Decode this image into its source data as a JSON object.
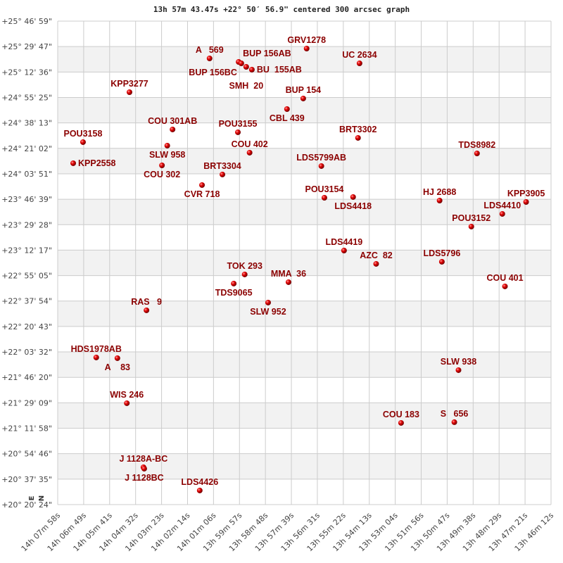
{
  "chart_data": {
    "type": "scatter",
    "title": "13h 57m 43.47s +22° 50′ 56.9\" centered 300 arcsec graph",
    "x_axis": {
      "range": [
        "14h07m58s",
        "13h46m12s"
      ],
      "direction": "RA decreasing to the right",
      "tick_labels": [
        "14h 07m 58s",
        "14h 06m 49s",
        "14h 05m 41s",
        "14h 04m 32s",
        "14h 03m 23s",
        "14h 02m 14s",
        "14h 01m 06s",
        "13h 59m 57s",
        "13h 58m 48s",
        "13h 57m 39s",
        "13h 56m 31s",
        "13h 55m 22s",
        "13h 54m 13s",
        "13h 53m 04s",
        "13h 51m 56s",
        "13h 50m 47s",
        "13h 49m 38s",
        "13h 48m 29s",
        "13h 47m 21s",
        "13h 46m 12s"
      ]
    },
    "y_axis": {
      "range": [
        "+20°20'24\"",
        "+25°46'59\""
      ],
      "tick_labels": [
        "+25° 46' 59\"",
        "+25° 29' 47\"",
        "+25° 12' 36\"",
        "+24° 55' 25\"",
        "+24° 38' 13\"",
        "+24° 21' 02\"",
        "+24° 03' 51\"",
        "+23° 46' 39\"",
        "+23° 29' 28\"",
        "+23° 12' 17\"",
        "+22° 55' 05\"",
        "+22° 37' 54\"",
        "+22° 20' 43\"",
        "+22° 03' 32\"",
        "+21° 46' 20\"",
        "+21° 29' 09\"",
        "+21° 11' 58\"",
        "+20° 54' 46\"",
        "+20° 37' 35\"",
        "+20° 20' 24\""
      ]
    },
    "grid": true,
    "alternating_bands": true,
    "direction_labels": {
      "north": "N",
      "east": "E"
    },
    "colors": {
      "point": "#dd0000",
      "label": "#8b0000",
      "grid": "#cccccc",
      "band": "#f2f2f2"
    },
    "points": [
      {
        "name": "A   569",
        "ra": "14h01m16s",
        "dec": "+25°21'47\""
      },
      {
        "name": "BUP 156AB",
        "ra": "13h59m59s",
        "dec": "+25°19'25\""
      },
      {
        "name": "BUP 156BC",
        "ra": "13h59m52s",
        "dec": "+25°18'28\""
      },
      {
        "name": "SMH  20",
        "ra": "13h59m39s",
        "dec": "+25°16'05\""
      },
      {
        "name": "BU  155AB",
        "ra": "13h59m24s",
        "dec": "+25°14'11\""
      },
      {
        "name": "GRV1278",
        "ra": "13h56m59s",
        "dec": "+25°28'27\""
      },
      {
        "name": "UC 2634",
        "ra": "13h54m39s",
        "dec": "+25°18'28\""
      },
      {
        "name": "KPP3277",
        "ra": "14h04m48s",
        "dec": "+24°58'58\""
      },
      {
        "name": "BUP 154",
        "ra": "13h57m08s",
        "dec": "+24°54'42\""
      },
      {
        "name": "CBL 439",
        "ra": "13h57m51s",
        "dec": "+24°47'34\""
      },
      {
        "name": "COU 301AB",
        "ra": "14h02m54s",
        "dec": "+24°33'47\""
      },
      {
        "name": "POU3155",
        "ra": "14h00m01s",
        "dec": "+24°31'53\""
      },
      {
        "name": "SLW 958",
        "ra": "14h03m08s",
        "dec": "+24°22'51\""
      },
      {
        "name": "BRT3302",
        "ra": "13h54m43s",
        "dec": "+24°28'05\""
      },
      {
        "name": "POU3158",
        "ra": "14h06m51s",
        "dec": "+24°25'14\""
      },
      {
        "name": "COU 402",
        "ra": "13h59m30s",
        "dec": "+24°18'06\""
      },
      {
        "name": "TDS8982",
        "ra": "13h49m28s",
        "dec": "+24°17'37\""
      },
      {
        "name": "KPP2558",
        "ra": "14h07m17s",
        "dec": "+24°10'58\""
      },
      {
        "name": "COU 302",
        "ra": "14h03m22s",
        "dec": "+24°09'32\""
      },
      {
        "name": "LDS5799AB",
        "ra": "13h56m20s",
        "dec": "+24°09'04\""
      },
      {
        "name": "BRT3304",
        "ra": "14h00m42s",
        "dec": "+24°03'22\""
      },
      {
        "name": "CVR 718",
        "ra": "14h01m36s",
        "dec": "+23°56'14\""
      },
      {
        "name": "POU3154",
        "ra": "13h56m12s",
        "dec": "+23°47'40\""
      },
      {
        "name": "LDS4418",
        "ra": "13h54m56s",
        "dec": "+23°48'09\""
      },
      {
        "name": "HJ 2688",
        "ra": "13h51m07s",
        "dec": "+23°45'46\""
      },
      {
        "name": "KPP3905",
        "ra": "13h47m18s",
        "dec": "+23°44'49\""
      },
      {
        "name": "LDS4410",
        "ra": "13h48m21s",
        "dec": "+23°36'45\""
      },
      {
        "name": "POU3152",
        "ra": "13h49m43s",
        "dec": "+23°28'11\""
      },
      {
        "name": "LDS4419",
        "ra": "13h55m20s",
        "dec": "+23°12'01\""
      },
      {
        "name": "AZC  82",
        "ra": "13h53m55s",
        "dec": "+23°03'00\""
      },
      {
        "name": "LDS5796",
        "ra": "13h51m01s",
        "dec": "+23°04'25\""
      },
      {
        "name": "TOK 293",
        "ra": "13h59m43s",
        "dec": "+22°55'52\""
      },
      {
        "name": "TDS9065",
        "ra": "14h00m12s",
        "dec": "+22°49'41\""
      },
      {
        "name": "MMA  36",
        "ra": "13h57m47s",
        "dec": "+22°50'38\""
      },
      {
        "name": "COU 401",
        "ra": "13h48m14s",
        "dec": "+22°47'47\""
      },
      {
        "name": "SLW 952",
        "ra": "13h58m41s",
        "dec": "+22°36'51\""
      },
      {
        "name": "RAS   9",
        "ra": "14h04m03s",
        "dec": "+22°31'37\""
      },
      {
        "name": "HDS1978AB",
        "ra": "14h06m16s",
        "dec": "+21°59'46\""
      },
      {
        "name": "A    83",
        "ra": "14h05m20s",
        "dec": "+21°59'18\""
      },
      {
        "name": "SLW 938",
        "ra": "13h50m17s",
        "dec": "+21°51'13\""
      },
      {
        "name": "WIS 246",
        "ra": "14h04m55s",
        "dec": "+21°28'53\""
      },
      {
        "name": "COU 183",
        "ra": "13h52m49s",
        "dec": "+21°15'34\""
      },
      {
        "name": "S   656",
        "ra": "13h50m28s",
        "dec": "+21°16'03\""
      },
      {
        "name": "J 1128A-BC",
        "ra": "14h04m11s",
        "dec": "+20°45'37\""
      },
      {
        "name": "J 1128BC",
        "ra": "14h04m09s",
        "dec": "+20°44'40\""
      },
      {
        "name": "LDS4426",
        "ra": "14h01m42s",
        "dec": "+20°29'56\""
      }
    ]
  }
}
